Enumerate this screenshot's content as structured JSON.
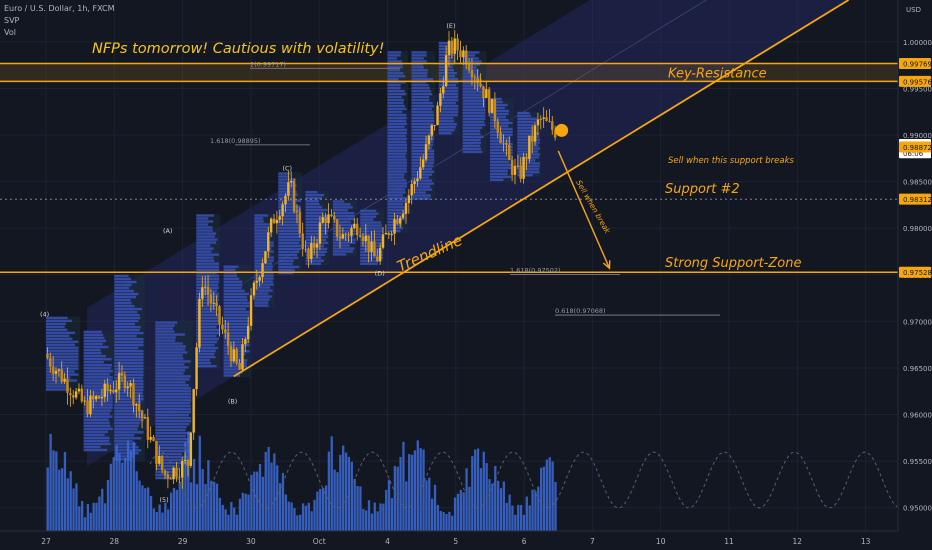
{
  "header": {
    "symbol_line": "Euro / U.S. Dollar, 1h, FXCM",
    "indicator_1": "SVP",
    "indicator_2": "Vol"
  },
  "colors": {
    "background": "#131722",
    "accent": "#f7a70d",
    "candle": "#f0b429",
    "volume": "#3d6bd8",
    "profile": "#3f57c9",
    "axis_text": "#b2b5be"
  },
  "chart_data": {
    "type": "candlestick",
    "title": "",
    "price_axis": {
      "currency": "USD",
      "range": [
        0.9475,
        1.0045
      ],
      "ticks": [
        "1.00000",
        "0.99500",
        "0.99000",
        "0.98500",
        "0.98000",
        "0.97500",
        "0.97000",
        "0.96500",
        "0.96000",
        "0.95500",
        "0.95000"
      ]
    },
    "time_axis": {
      "ticks": [
        "27",
        "28",
        "29",
        "30",
        "Oct",
        "4",
        "5",
        "6",
        "7",
        "10",
        "11",
        "12",
        "13"
      ]
    },
    "price_badges": [
      {
        "label": "0.99769",
        "value": 0.99769
      },
      {
        "label": "0.99576",
        "value": 0.99576
      },
      {
        "label": "0.98899",
        "value": 0.98899
      },
      {
        "label": "06:06",
        "value": 0.9881
      },
      {
        "label": "0.98872",
        "value": 0.98872
      },
      {
        "label": "0.98312",
        "value": 0.98312
      },
      {
        "label": "0.97528",
        "value": 0.97528
      }
    ],
    "horizontal_levels": [
      {
        "name": "Key-Resistance",
        "value": 0.99769
      },
      {
        "name": "Key-Resistance",
        "value": 0.99576
      },
      {
        "name": "Strong Support-Zone",
        "value": 0.97528
      }
    ],
    "dotted_levels": [
      {
        "label": "",
        "value": 0.98312
      }
    ],
    "fib_levels": [
      {
        "label": "2(0.99717)",
        "value": 0.99717
      },
      {
        "label": "1.618(0.98895)",
        "value": 0.98895
      },
      {
        "label": "1.618(0.97502)",
        "value": 0.97502
      },
      {
        "label": "0.618(0.97068)",
        "value": 0.97068
      }
    ],
    "wave_labels": [
      {
        "label": "(4)",
        "x": 0,
        "y": 0.9705
      },
      {
        "label": "(A)",
        "x": 1.8,
        "y": 0.9795
      },
      {
        "label": "(C)",
        "x": 3.55,
        "y": 0.9862
      },
      {
        "label": "(E)",
        "x": 5.95,
        "y": 1.0015
      },
      {
        "label": "(B)",
        "x": 2.75,
        "y": 0.9612
      },
      {
        "label": "(D)",
        "x": 4.9,
        "y": 0.9749
      },
      {
        "label": "(5)",
        "x": 1.75,
        "y": 0.9506
      }
    ],
    "annotations": [
      {
        "text": "NFPs tomorrow! Cautious with volatility!",
        "role": "headline"
      },
      {
        "text": "Key-Resistance",
        "role": "zone-label"
      },
      {
        "text": "Sell when this support breaks",
        "role": "note"
      },
      {
        "text": "Support #2",
        "role": "zone-label"
      },
      {
        "text": "Strong Support-Zone",
        "role": "zone-label"
      },
      {
        "text": "Trendline",
        "role": "line-label"
      },
      {
        "text": "Sell when break",
        "role": "arrow-label"
      }
    ],
    "trendline": [
      [
        2.75,
        0.9641
      ],
      [
        11.75,
        1.0045
      ]
    ],
    "channel_band_offset": 0.017,
    "projection_arrow": {
      "from": [
        7.5,
        0.9883
      ],
      "to": [
        8.25,
        0.9757
      ]
    },
    "marker_point": [
      7.55,
      0.9905
    ],
    "anchors": [
      {
        "x": 0,
        "price": 0.9665
      },
      {
        "x": 0.6,
        "price": 0.9608
      },
      {
        "x": 1.2,
        "price": 0.964
      },
      {
        "x": 1.75,
        "price": 0.9535
      },
      {
        "x": 2.1,
        "price": 0.9548
      },
      {
        "x": 2.3,
        "price": 0.9747
      },
      {
        "x": 2.55,
        "price": 0.97
      },
      {
        "x": 2.85,
        "price": 0.9645
      },
      {
        "x": 3.05,
        "price": 0.973
      },
      {
        "x": 3.35,
        "price": 0.981
      },
      {
        "x": 3.6,
        "price": 0.9845
      },
      {
        "x": 3.85,
        "price": 0.9762
      },
      {
        "x": 4.1,
        "price": 0.9815
      },
      {
        "x": 4.35,
        "price": 0.979
      },
      {
        "x": 4.6,
        "price": 0.9805
      },
      {
        "x": 4.85,
        "price": 0.9765
      },
      {
        "x": 5.05,
        "price": 0.98
      },
      {
        "x": 5.3,
        "price": 0.983
      },
      {
        "x": 5.55,
        "price": 0.9875
      },
      {
        "x": 5.75,
        "price": 0.9925
      },
      {
        "x": 5.9,
        "price": 0.999
      },
      {
        "x": 6.0,
        "price": 0.9995
      },
      {
        "x": 6.15,
        "price": 0.9988
      },
      {
        "x": 6.35,
        "price": 0.996
      },
      {
        "x": 6.6,
        "price": 0.992
      },
      {
        "x": 6.8,
        "price": 0.987
      },
      {
        "x": 6.95,
        "price": 0.9855
      },
      {
        "x": 7.1,
        "price": 0.989
      },
      {
        "x": 7.25,
        "price": 0.9917
      },
      {
        "x": 7.45,
        "price": 0.9905
      }
    ]
  }
}
